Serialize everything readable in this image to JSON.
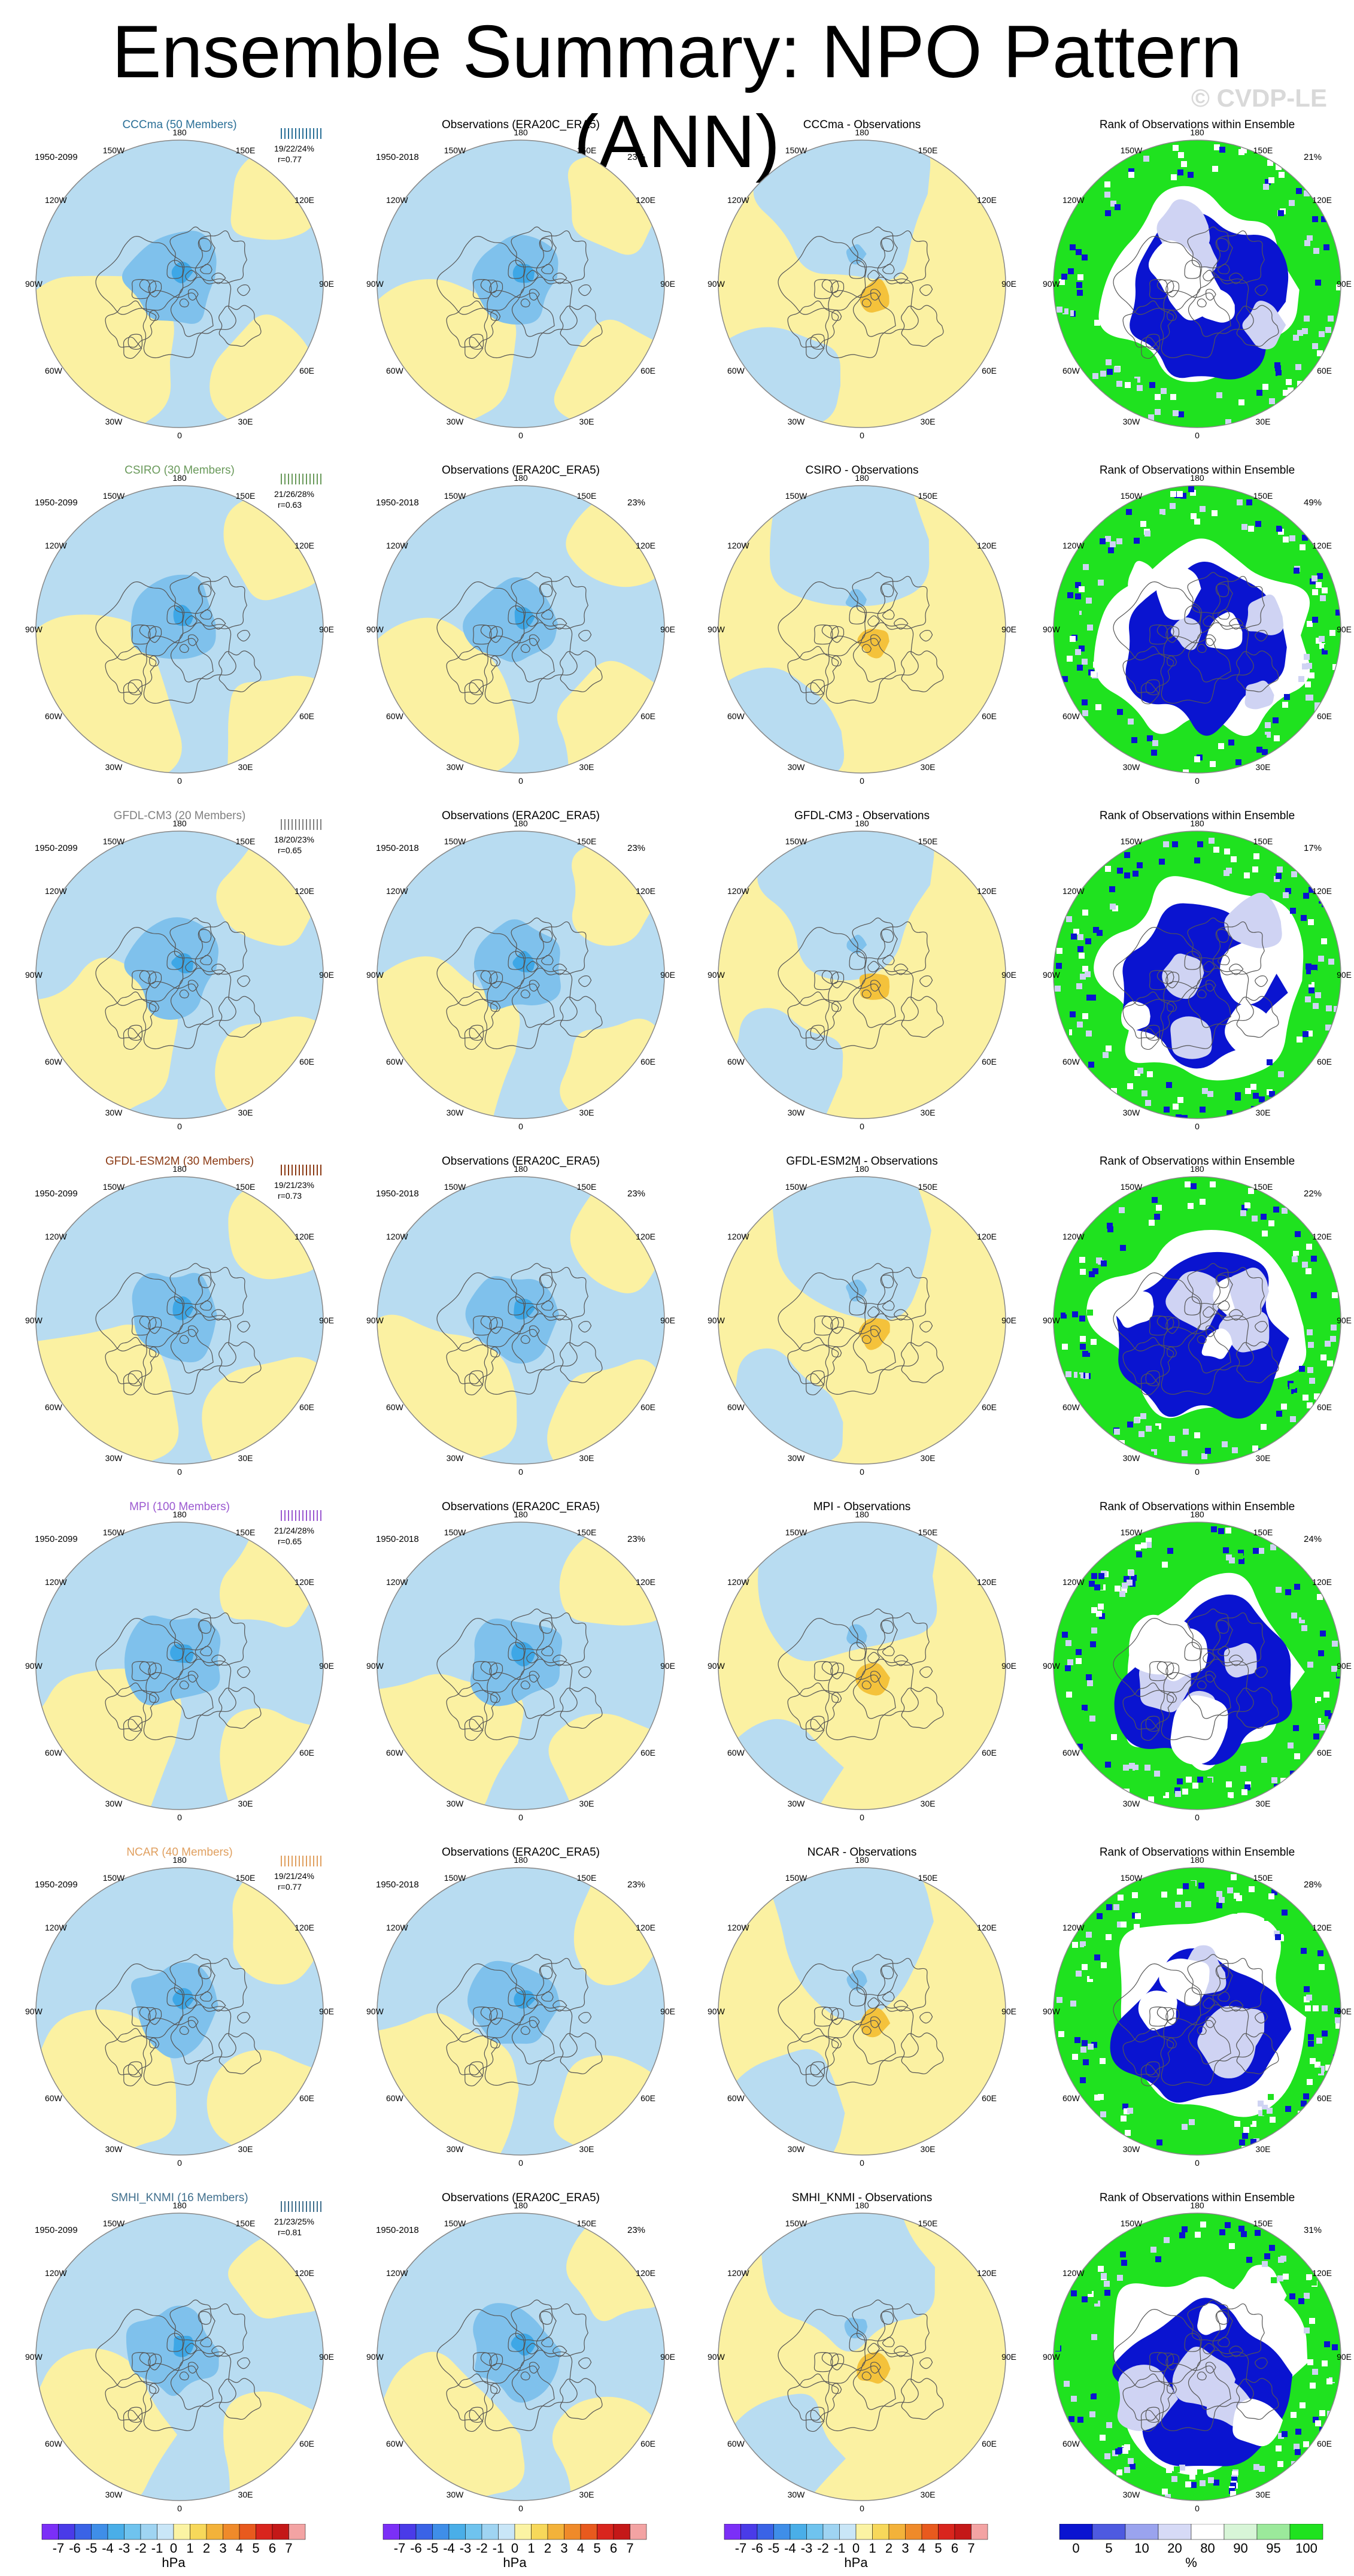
{
  "title": "Ensemble Summary: NPO Pattern (ANN)",
  "watermark": "© CVDP-LE",
  "rows": [
    {
      "model": "CCCma (50 Members)",
      "color": "#2a6f97",
      "model_period": "1950-2099",
      "obs_title": "Observations (ERA20C_ERA5)",
      "obs_period": "1950-2018",
      "obs_pct": "23%",
      "diff_title": "CCCma - Observations",
      "rank_title": "Rank of Observations within Ensemble",
      "rank_pct": "21%",
      "stats": "19/22/24%",
      "r": "r=0.77"
    },
    {
      "model": "CSIRO (30 Members)",
      "color": "#6a9a5b",
      "model_period": "1950-2099",
      "obs_title": "Observations (ERA20C_ERA5)",
      "obs_period": "1950-2018",
      "obs_pct": "23%",
      "diff_title": "CSIRO - Observations",
      "rank_title": "Rank of Observations within Ensemble",
      "rank_pct": "49%",
      "stats": "21/26/28%",
      "r": "r=0.63"
    },
    {
      "model": "GFDL-CM3 (20 Members)",
      "color": "#808080",
      "model_period": "1950-2099",
      "obs_title": "Observations (ERA20C_ERA5)",
      "obs_period": "1950-2018",
      "obs_pct": "23%",
      "diff_title": "GFDL-CM3 - Observations",
      "rank_title": "Rank of Observations within Ensemble",
      "rank_pct": "17%",
      "stats": "18/20/23%",
      "r": "r=0.65"
    },
    {
      "model": "GFDL-ESM2M (30 Members)",
      "color": "#8b3a14",
      "model_period": "1950-2099",
      "obs_title": "Observations (ERA20C_ERA5)",
      "obs_period": "1950-2018",
      "obs_pct": "23%",
      "diff_title": "GFDL-ESM2M - Observations",
      "rank_title": "Rank of Observations within Ensemble",
      "rank_pct": "22%",
      "stats": "19/21/23%",
      "r": "r=0.73"
    },
    {
      "model": "MPI (100 Members)",
      "color": "#9b59d0",
      "model_period": "1950-2099",
      "obs_title": "Observations (ERA20C_ERA5)",
      "obs_period": "1950-2018",
      "obs_pct": "23%",
      "diff_title": "MPI - Observations",
      "rank_title": "Rank of Observations within Ensemble",
      "rank_pct": "24%",
      "stats": "21/24/28%",
      "r": "r=0.65"
    },
    {
      "model": "NCAR (40 Members)",
      "color": "#e0a060",
      "model_period": "1950-2099",
      "obs_title": "Observations (ERA20C_ERA5)",
      "obs_period": "1950-2018",
      "obs_pct": "23%",
      "diff_title": "NCAR - Observations",
      "rank_title": "Rank of Observations within Ensemble",
      "rank_pct": "28%",
      "stats": "19/21/24%",
      "r": "r=0.77"
    },
    {
      "model": "SMHI_KNMI (16 Members)",
      "color": "#3f6e8c",
      "model_period": "1950-2099",
      "obs_title": "Observations (ERA20C_ERA5)",
      "obs_period": "1950-2018",
      "obs_pct": "23%",
      "diff_title": "SMHI_KNMI - Observations",
      "rank_title": "Rank of Observations within Ensemble",
      "rank_pct": "31%",
      "stats": "21/23/25%",
      "r": "r=0.81"
    }
  ],
  "map_labels": {
    "top": "180",
    "bottom": "0",
    "left": "90W",
    "right": "90E",
    "tl1": "150W",
    "tr1": "150E",
    "tl2": "120W",
    "tr2": "120E",
    "bl1": "60W",
    "br1": "60E",
    "bl2": "30W",
    "br2": "30E"
  },
  "colorbar_hpa": {
    "ticks": [
      "-7",
      "-6",
      "-5",
      "-4",
      "-3",
      "-2",
      "-1",
      "0",
      "1",
      "2",
      "3",
      "4",
      "5",
      "6",
      "7"
    ],
    "unit": "hPa",
    "colors": [
      "#7b2ff7",
      "#4a3be8",
      "#3a63e6",
      "#3f8ee8",
      "#4aaee8",
      "#6fc3ee",
      "#9fd4f2",
      "#c9e6f7",
      "#fbf3a3",
      "#f7d85a",
      "#f3b23a",
      "#ef8a2a",
      "#e85a1e",
      "#d9251d",
      "#c41818",
      "#f3a3a3"
    ]
  },
  "colorbar_rank": {
    "ticks": [
      "0",
      "5",
      "10",
      "20",
      "80",
      "90",
      "95",
      "100"
    ],
    "unit": "%",
    "colors": [
      "#0a14d0",
      "#4e5ae0",
      "#9aa3ee",
      "#d6daf6",
      "#ffffff",
      "#d7f5d7",
      "#9be99b",
      "#1fe21f"
    ]
  },
  "palette": {
    "neg": "#b8dcf1",
    "neg2": "#7fc1ec",
    "neg3": "#3ea7e6",
    "pos": "#fbf1a2",
    "pos2": "#f4c23b",
    "rank_blue": "#0a14d0",
    "rank_green": "#1fe21f",
    "rank_light": "#cfd3f3"
  }
}
